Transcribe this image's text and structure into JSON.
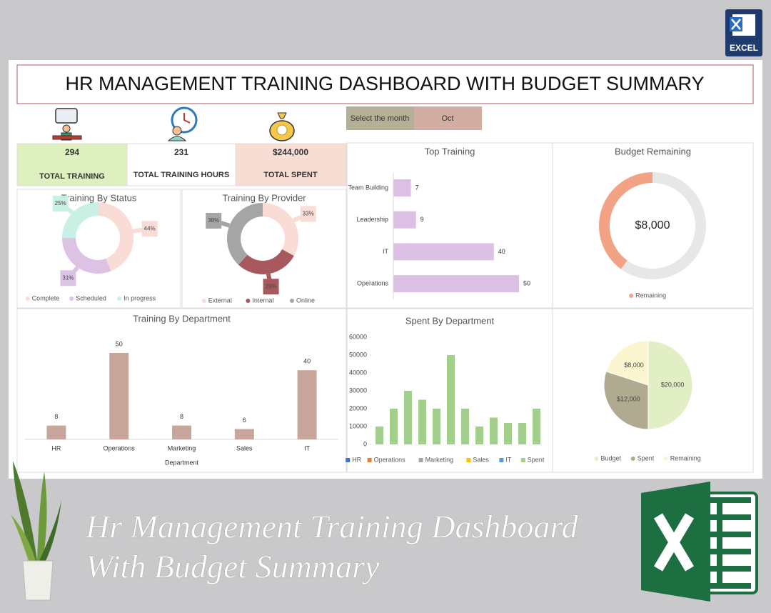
{
  "header": {
    "title": "HR MANAGEMENT TRAINING DASHBOARD WITH BUDGET SUMMARY",
    "badge": "EXCEL"
  },
  "month_selector": {
    "label": "Select the month",
    "value": "Oct"
  },
  "kpis": [
    {
      "value": "294",
      "label": "TOTAL TRAINING"
    },
    {
      "value": "231",
      "label": "TOTAL TRAINING HOURS"
    },
    {
      "value": "$244,000",
      "label": "TOTAL SPENT"
    }
  ],
  "chart_data": [
    {
      "type": "donut",
      "title": "Training By Status",
      "categories": [
        "Complete",
        "Scheduled",
        "In progress"
      ],
      "values": [
        44,
        31,
        25
      ],
      "value_labels": [
        "44%",
        "31%",
        "25%"
      ],
      "colors": [
        "#f9dcd6",
        "#dcc3e3",
        "#c9f0e4"
      ]
    },
    {
      "type": "donut",
      "title": "Training By Provider",
      "categories": [
        "External",
        "Internal",
        "Online"
      ],
      "values": [
        33,
        29,
        38
      ],
      "value_labels": [
        "33%",
        "29%",
        "38%"
      ],
      "colors": [
        "#f9dcd6",
        "#a8595e",
        "#a5a5a5"
      ]
    },
    {
      "type": "bar",
      "horizontal": true,
      "title": "Top Training",
      "categories": [
        "Team Building",
        "Leadership",
        "IT",
        "Operations"
      ],
      "values": [
        7,
        9,
        40,
        50
      ],
      "color": "#dcc0e3"
    },
    {
      "type": "donut",
      "title": "Budget Remaining",
      "categories": [
        "Remaining",
        null
      ],
      "values": [
        8000,
        12000
      ],
      "colors": [
        "#f2a386",
        "#e7e7e7"
      ],
      "center_label": "$8,000"
    },
    {
      "type": "bar",
      "title": "Training By Department",
      "categories": [
        "HR",
        "Operations",
        "Marketing",
        "Sales",
        "IT"
      ],
      "values": [
        8,
        50,
        8,
        6,
        40
      ],
      "color": "#c9a69b",
      "xlabel": "Department"
    },
    {
      "type": "bar",
      "stacked": true,
      "title": "Spent By Department",
      "categories": [
        null,
        null,
        null,
        null,
        null,
        null,
        null,
        null,
        null,
        null,
        null,
        null
      ],
      "series": [
        {
          "name": "HR",
          "color": "#4472c4",
          "values": [
            0,
            0,
            0,
            0,
            0,
            0,
            0,
            0,
            0,
            0,
            0,
            0
          ]
        },
        {
          "name": "Operations",
          "color": "#ed7d31",
          "values": [
            0,
            0,
            0,
            0,
            0,
            0,
            0,
            0,
            0,
            0,
            0,
            0
          ]
        },
        {
          "name": "Marketing",
          "color": "#a5a5a5",
          "values": [
            0,
            0,
            0,
            0,
            0,
            0,
            0,
            0,
            0,
            0,
            0,
            0
          ]
        },
        {
          "name": "Sales",
          "color": "#ffc000",
          "values": [
            0,
            0,
            0,
            0,
            0,
            0,
            0,
            0,
            0,
            0,
            0,
            0
          ]
        },
        {
          "name": "IT",
          "color": "#5b9bd5",
          "values": [
            0,
            0,
            0,
            0,
            0,
            0,
            0,
            0,
            0,
            0,
            0,
            0
          ]
        },
        {
          "name": "Spent",
          "color": "#a2d08c",
          "values": [
            10000,
            20000,
            30000,
            25000,
            20000,
            50000,
            20000,
            10000,
            15000,
            12000,
            12000,
            20000
          ]
        }
      ],
      "ylim": [
        0,
        60000
      ],
      "yticks": [
        0,
        10000,
        20000,
        30000,
        40000,
        50000,
        60000
      ]
    },
    {
      "type": "pie",
      "categories": [
        "Budget",
        "Spent",
        "Remaining"
      ],
      "values": [
        20000,
        12000,
        8000
      ],
      "value_labels": [
        "$20,000",
        "$12,000",
        "$8,000"
      ],
      "colors": [
        "#e2efc4",
        "#b0ab90",
        "#fbf5d0"
      ]
    }
  ],
  "footer": {
    "line1": "Hr Management Training Dashboard",
    "line2": "With Budget Summary"
  }
}
